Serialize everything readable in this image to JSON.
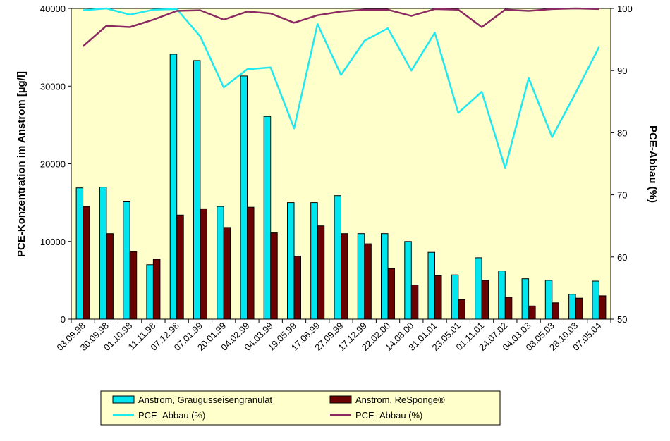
{
  "chart_data": {
    "type": "bar",
    "categories": [
      "03.09.98",
      "30.09.98",
      "01.10.98",
      "11.11.98",
      "07.12.98",
      "07.01.99",
      "20.01.99",
      "04.02.99",
      "04.03.99",
      "19.05.99",
      "17.06.99",
      "27.09.99",
      "17.12.99",
      "22.02.00",
      "14.08.00",
      "31.01.01",
      "23.05.01",
      "01.11.01",
      "24.07.02",
      "04.03.03",
      "08.05.03",
      "28.10.03",
      "07.05.04"
    ],
    "series": [
      {
        "name": "Anstrom, Graugusseisengranulat",
        "kind": "bar",
        "axis": "left",
        "color": "#00e5ee",
        "values": [
          16900,
          17000,
          15100,
          7000,
          34100,
          33300,
          14500,
          31300,
          26100,
          15000,
          15000,
          15900,
          11000,
          11000,
          10000,
          8600,
          5700,
          7900,
          6200,
          5200,
          5000,
          3200,
          4900
        ]
      },
      {
        "name": "Anstrom, ReSponge®",
        "kind": "bar",
        "axis": "left",
        "color": "#6b0000",
        "values": [
          14500,
          11000,
          8700,
          7700,
          13400,
          14200,
          11800,
          14400,
          11100,
          8100,
          12000,
          11000,
          9700,
          6500,
          4400,
          5600,
          2500,
          5000,
          2800,
          1700,
          2100,
          2700,
          3000
        ]
      },
      {
        "name": "PCE- Abbau (%)",
        "kind": "line",
        "axis": "right",
        "color": "#1ee8f0",
        "values": [
          99.7,
          100,
          99,
          99.8,
          99.9,
          95.5,
          87.3,
          90.2,
          90.5,
          80.7,
          97.5,
          89.3,
          94.8,
          96.8,
          90,
          96.1,
          83.2,
          86.6,
          74.3,
          88.8,
          79.3,
          86.4,
          93.8
        ]
      },
      {
        "name": "PCE- Abbau (%)",
        "kind": "line",
        "axis": "right",
        "color": "#8b2a62",
        "values": [
          93.9,
          97.2,
          97,
          98.2,
          99.6,
          99.7,
          98.2,
          99.5,
          99.2,
          97.7,
          98.9,
          99.5,
          99.8,
          99.8,
          98.8,
          99.9,
          99.8,
          97,
          99.8,
          99.6,
          99.9,
          100,
          99.9
        ]
      }
    ],
    "ylabel": "PCE-Konzentration im Anstrom [µg/l]",
    "y2label": "PCE-Abbau (%)",
    "ylim": [
      0,
      40000
    ],
    "y2lim": [
      50,
      100
    ],
    "yticks": [
      "0",
      "10000",
      "20000",
      "30000",
      "40000"
    ],
    "y2ticks": [
      "50",
      "60",
      "70",
      "80",
      "90",
      "100"
    ],
    "plot_background": "#ffffcc",
    "grid": false,
    "legend_position": "bottom"
  }
}
